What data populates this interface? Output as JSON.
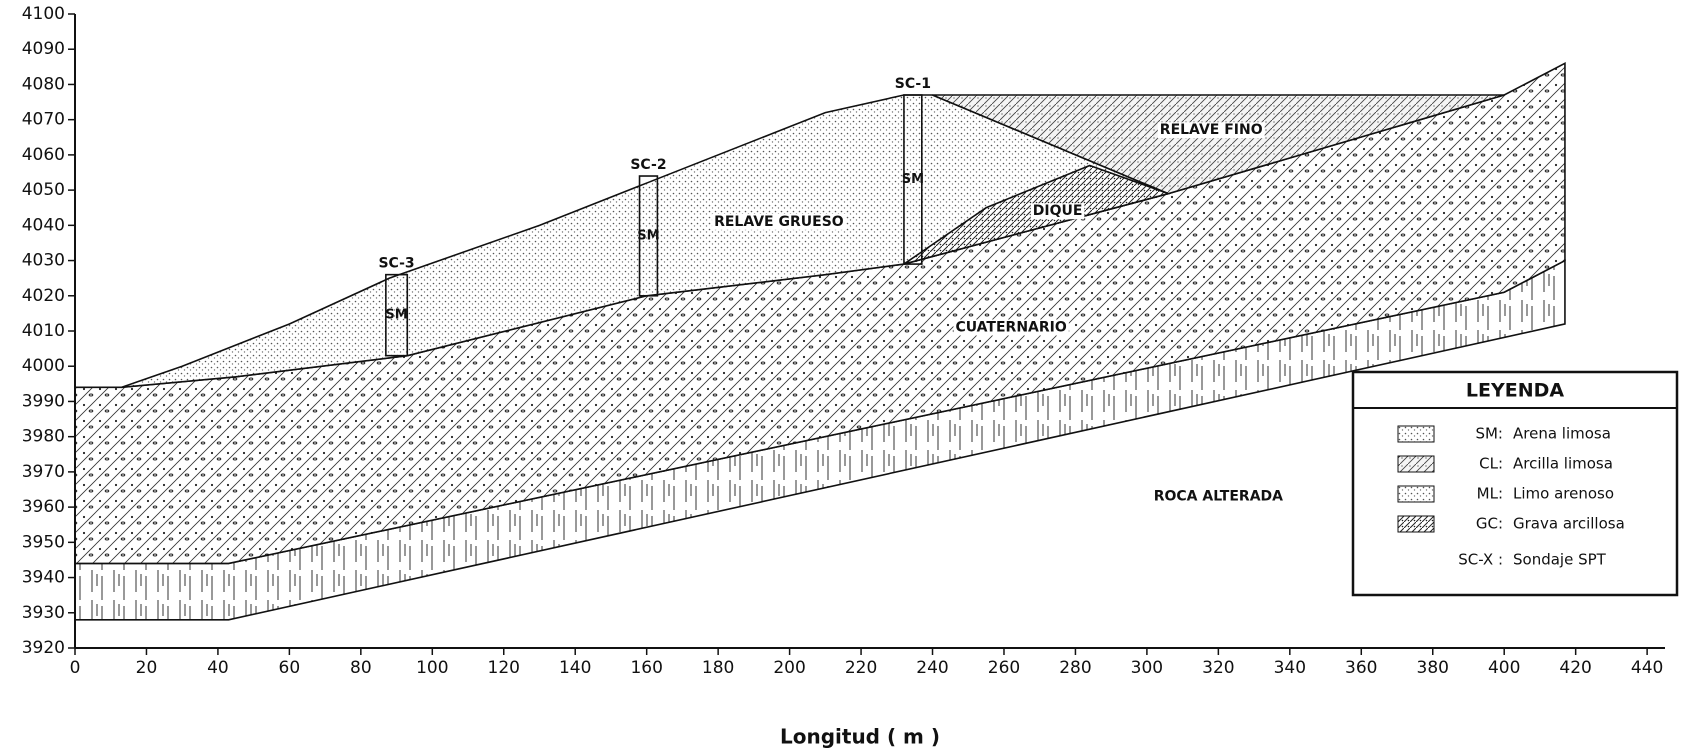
{
  "chart_data": {
    "type": "section",
    "x_label": "Longitud ( m )",
    "xlim": [
      0,
      445
    ],
    "ylim": [
      3920,
      4100
    ],
    "xticks": [
      0,
      20,
      40,
      60,
      80,
      100,
      120,
      140,
      160,
      180,
      200,
      220,
      240,
      260,
      280,
      300,
      320,
      340,
      360,
      380,
      400,
      420,
      440
    ],
    "yticks": [
      3920,
      3930,
      3940,
      3950,
      3960,
      3970,
      3980,
      3990,
      4000,
      4010,
      4020,
      4030,
      4040,
      4050,
      4060,
      4070,
      4080,
      4090,
      4100
    ],
    "layers": [
      {
        "name": "ROCA ALTERADA",
        "x": [
          0,
          43,
          400,
          417,
          417,
          43,
          0
        ],
        "y": [
          3944,
          3944,
          4021,
          4030,
          4012,
          3928,
          3928
        ]
      },
      {
        "name": "CUATERNARIO",
        "x": [
          0,
          13,
          45,
          93,
          160,
          210,
          232,
          306,
          400,
          417,
          417,
          400,
          43,
          0
        ],
        "y": [
          3994,
          3994,
          3997,
          4003,
          4020,
          4026,
          4029,
          4049,
          4077,
          4086,
          4030,
          4021,
          3944,
          3944
        ]
      },
      {
        "name": "RELAVE GRUESO",
        "x": [
          13,
          30,
          60,
          88,
          130,
          160,
          210,
          232,
          240,
          306,
          232,
          210,
          160,
          93,
          45
        ],
        "y": [
          3994,
          4000,
          4012,
          4025,
          4040,
          4052,
          4072,
          4077,
          4077,
          4049,
          4029,
          4026,
          4020,
          4003,
          3997
        ]
      },
      {
        "name": "RELAVE FINO",
        "x": [
          240,
          400,
          306
        ],
        "y": [
          4077,
          4077,
          4049
        ]
      },
      {
        "name": "DIQUE",
        "x": [
          232,
          255,
          284,
          306,
          232
        ],
        "y": [
          4029,
          4045,
          4057,
          4049,
          4029
        ]
      }
    ],
    "boreholes": [
      {
        "name": "SC-3",
        "soil": "SM",
        "x_left": 87,
        "x_right": 93,
        "top": 4026,
        "bottom": 4003
      },
      {
        "name": "SC-2",
        "soil": "SM",
        "x_left": 158,
        "x_right": 163,
        "top": 4054,
        "bottom": 4020
      },
      {
        "name": "SC-1",
        "soil": "SM",
        "x_left": 232,
        "x_right": 237,
        "top": 4077,
        "bottom": 4029
      }
    ],
    "legend": {
      "title": "LEYENDA",
      "items": [
        {
          "code": "SM:",
          "text": "Arena limosa"
        },
        {
          "code": "CL:",
          "text": "Arcilla limosa"
        },
        {
          "code": "ML:",
          "text": "Limo arenoso"
        },
        {
          "code": "GC:",
          "text": "Grava arcillosa"
        },
        {
          "code": "SC-X :",
          "text": "Sondaje SPT"
        }
      ]
    }
  }
}
